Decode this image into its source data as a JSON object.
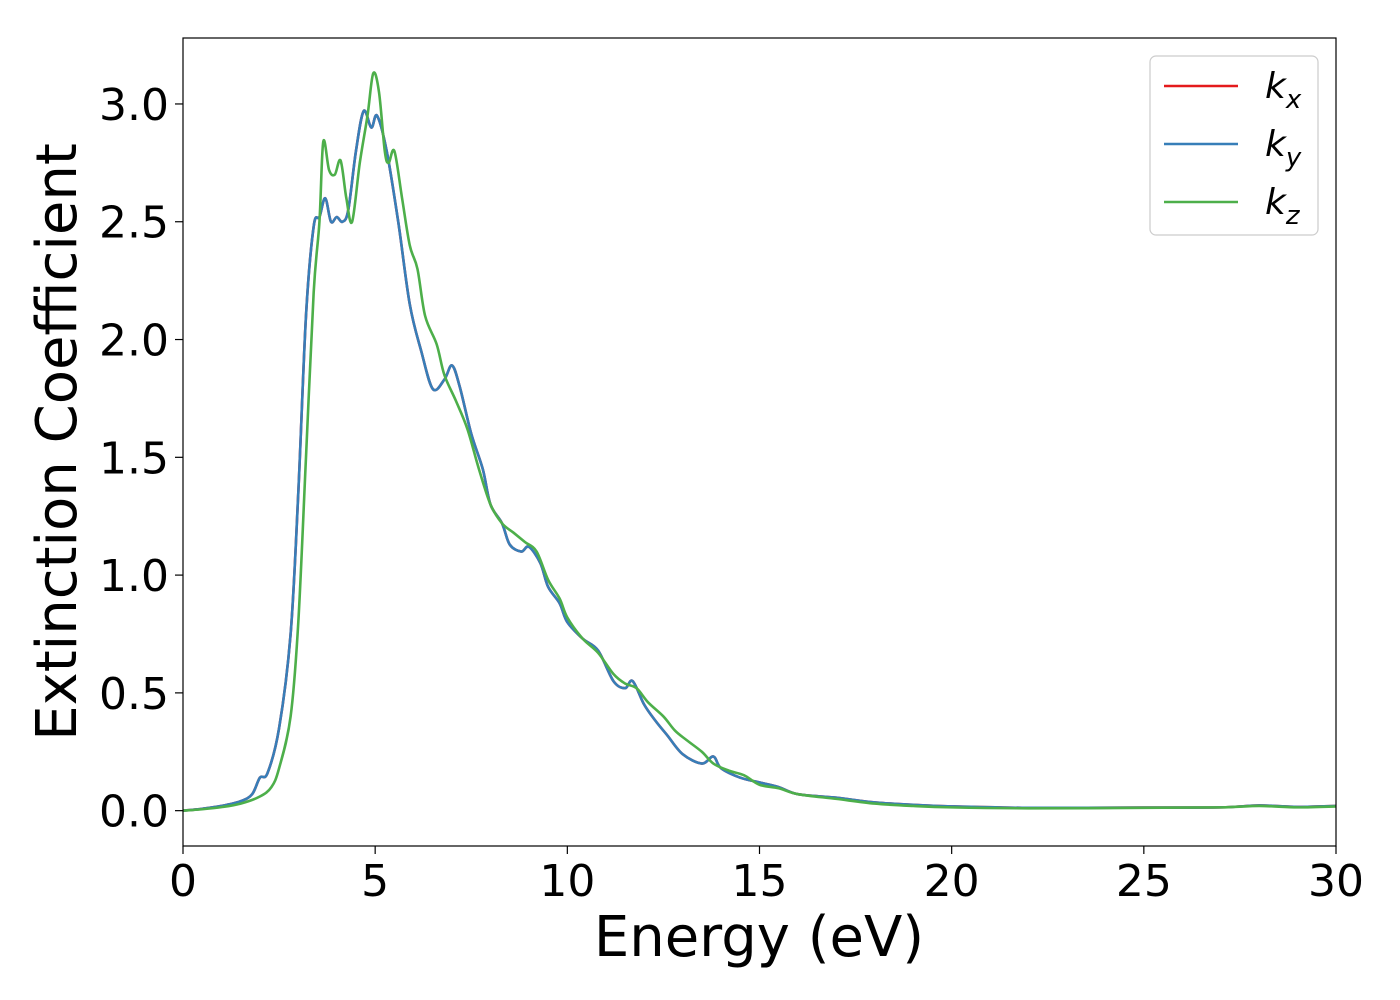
{
  "chart_data": {
    "type": "line",
    "title": "",
    "xlabel": "Energy (eV)",
    "ylabel": "Extinction Coefficient",
    "xlim": [
      0,
      30
    ],
    "ylim": [
      -0.15,
      3.28
    ],
    "xticks": [
      0,
      5,
      10,
      15,
      20,
      25,
      30
    ],
    "xtick_labels": [
      "0",
      "5",
      "10",
      "15",
      "20",
      "25",
      "30"
    ],
    "yticks": [
      0.0,
      0.5,
      1.0,
      1.5,
      2.0,
      2.5,
      3.0
    ],
    "ytick_labels": [
      "0.0",
      "0.5",
      "1.0",
      "1.5",
      "2.0",
      "2.5",
      "3.0"
    ],
    "grid": false,
    "legend_position": "top-right",
    "series": [
      {
        "name": "k",
        "subscript": "x",
        "color": "#e41a1c",
        "points": [
          [
            0,
            0.0
          ],
          [
            0.5,
            0.008
          ],
          [
            1.0,
            0.02
          ],
          [
            1.5,
            0.04
          ],
          [
            1.8,
            0.07
          ],
          [
            2.0,
            0.14
          ],
          [
            2.2,
            0.16
          ],
          [
            2.5,
            0.35
          ],
          [
            2.8,
            0.75
          ],
          [
            3.0,
            1.35
          ],
          [
            3.2,
            2.1
          ],
          [
            3.4,
            2.48
          ],
          [
            3.55,
            2.52
          ],
          [
            3.7,
            2.6
          ],
          [
            3.85,
            2.5
          ],
          [
            4.0,
            2.52
          ],
          [
            4.15,
            2.5
          ],
          [
            4.3,
            2.55
          ],
          [
            4.5,
            2.8
          ],
          [
            4.7,
            2.97
          ],
          [
            4.9,
            2.9
          ],
          [
            5.05,
            2.95
          ],
          [
            5.3,
            2.8
          ],
          [
            5.6,
            2.5
          ],
          [
            5.9,
            2.15
          ],
          [
            6.2,
            1.95
          ],
          [
            6.5,
            1.79
          ],
          [
            6.8,
            1.83
          ],
          [
            7.0,
            1.89
          ],
          [
            7.2,
            1.8
          ],
          [
            7.5,
            1.6
          ],
          [
            7.8,
            1.45
          ],
          [
            8.0,
            1.3
          ],
          [
            8.3,
            1.22
          ],
          [
            8.5,
            1.13
          ],
          [
            8.8,
            1.1
          ],
          [
            9.0,
            1.12
          ],
          [
            9.3,
            1.05
          ],
          [
            9.5,
            0.95
          ],
          [
            9.8,
            0.88
          ],
          [
            10.0,
            0.8
          ],
          [
            10.4,
            0.73
          ],
          [
            10.8,
            0.68
          ],
          [
            11.2,
            0.55
          ],
          [
            11.5,
            0.52
          ],
          [
            11.7,
            0.55
          ],
          [
            12.0,
            0.45
          ],
          [
            12.3,
            0.38
          ],
          [
            12.6,
            0.32
          ],
          [
            13.0,
            0.24
          ],
          [
            13.5,
            0.2
          ],
          [
            13.8,
            0.23
          ],
          [
            14.0,
            0.18
          ],
          [
            14.5,
            0.14
          ],
          [
            15.0,
            0.12
          ],
          [
            15.5,
            0.1
          ],
          [
            16.0,
            0.07
          ],
          [
            17.0,
            0.055
          ],
          [
            18.0,
            0.035
          ],
          [
            19.0,
            0.025
          ],
          [
            20.0,
            0.018
          ],
          [
            22.0,
            0.012
          ],
          [
            25.0,
            0.013
          ],
          [
            27.0,
            0.014
          ],
          [
            28.0,
            0.022
          ],
          [
            29.0,
            0.016
          ],
          [
            30.0,
            0.02
          ]
        ]
      },
      {
        "name": "k",
        "subscript": "y",
        "color": "#377eb8",
        "points": [
          [
            0,
            0.0
          ],
          [
            0.5,
            0.008
          ],
          [
            1.0,
            0.02
          ],
          [
            1.5,
            0.04
          ],
          [
            1.8,
            0.07
          ],
          [
            2.0,
            0.14
          ],
          [
            2.2,
            0.16
          ],
          [
            2.5,
            0.35
          ],
          [
            2.8,
            0.75
          ],
          [
            3.0,
            1.35
          ],
          [
            3.2,
            2.1
          ],
          [
            3.4,
            2.48
          ],
          [
            3.55,
            2.52
          ],
          [
            3.7,
            2.6
          ],
          [
            3.85,
            2.5
          ],
          [
            4.0,
            2.52
          ],
          [
            4.15,
            2.5
          ],
          [
            4.3,
            2.55
          ],
          [
            4.5,
            2.8
          ],
          [
            4.7,
            2.97
          ],
          [
            4.9,
            2.9
          ],
          [
            5.05,
            2.95
          ],
          [
            5.3,
            2.8
          ],
          [
            5.6,
            2.5
          ],
          [
            5.9,
            2.15
          ],
          [
            6.2,
            1.95
          ],
          [
            6.5,
            1.79
          ],
          [
            6.8,
            1.83
          ],
          [
            7.0,
            1.89
          ],
          [
            7.2,
            1.8
          ],
          [
            7.5,
            1.6
          ],
          [
            7.8,
            1.45
          ],
          [
            8.0,
            1.3
          ],
          [
            8.3,
            1.22
          ],
          [
            8.5,
            1.13
          ],
          [
            8.8,
            1.1
          ],
          [
            9.0,
            1.12
          ],
          [
            9.3,
            1.05
          ],
          [
            9.5,
            0.95
          ],
          [
            9.8,
            0.88
          ],
          [
            10.0,
            0.8
          ],
          [
            10.4,
            0.73
          ],
          [
            10.8,
            0.68
          ],
          [
            11.2,
            0.55
          ],
          [
            11.5,
            0.52
          ],
          [
            11.7,
            0.55
          ],
          [
            12.0,
            0.45
          ],
          [
            12.3,
            0.38
          ],
          [
            12.6,
            0.32
          ],
          [
            13.0,
            0.24
          ],
          [
            13.5,
            0.2
          ],
          [
            13.8,
            0.23
          ],
          [
            14.0,
            0.18
          ],
          [
            14.5,
            0.14
          ],
          [
            15.0,
            0.12
          ],
          [
            15.5,
            0.1
          ],
          [
            16.0,
            0.07
          ],
          [
            17.0,
            0.055
          ],
          [
            18.0,
            0.035
          ],
          [
            19.0,
            0.025
          ],
          [
            20.0,
            0.018
          ],
          [
            22.0,
            0.012
          ],
          [
            25.0,
            0.013
          ],
          [
            27.0,
            0.014
          ],
          [
            28.0,
            0.022
          ],
          [
            29.0,
            0.016
          ],
          [
            30.0,
            0.02
          ]
        ]
      },
      {
        "name": "k",
        "subscript": "z",
        "color": "#4daf4a",
        "points": [
          [
            0,
            0.0
          ],
          [
            0.5,
            0.006
          ],
          [
            1.0,
            0.015
          ],
          [
            1.5,
            0.03
          ],
          [
            2.0,
            0.06
          ],
          [
            2.3,
            0.1
          ],
          [
            2.5,
            0.18
          ],
          [
            2.8,
            0.4
          ],
          [
            3.0,
            0.8
          ],
          [
            3.2,
            1.5
          ],
          [
            3.4,
            2.2
          ],
          [
            3.55,
            2.5
          ],
          [
            3.65,
            2.84
          ],
          [
            3.8,
            2.72
          ],
          [
            3.95,
            2.7
          ],
          [
            4.1,
            2.76
          ],
          [
            4.25,
            2.6
          ],
          [
            4.4,
            2.5
          ],
          [
            4.6,
            2.75
          ],
          [
            4.8,
            2.95
          ],
          [
            4.95,
            3.13
          ],
          [
            5.1,
            3.05
          ],
          [
            5.25,
            2.8
          ],
          [
            5.35,
            2.75
          ],
          [
            5.5,
            2.8
          ],
          [
            5.7,
            2.6
          ],
          [
            5.9,
            2.4
          ],
          [
            6.1,
            2.3
          ],
          [
            6.3,
            2.1
          ],
          [
            6.6,
            1.98
          ],
          [
            6.8,
            1.85
          ],
          [
            7.1,
            1.74
          ],
          [
            7.4,
            1.62
          ],
          [
            7.7,
            1.45
          ],
          [
            8.0,
            1.3
          ],
          [
            8.3,
            1.22
          ],
          [
            8.6,
            1.18
          ],
          [
            8.9,
            1.14
          ],
          [
            9.2,
            1.1
          ],
          [
            9.5,
            0.98
          ],
          [
            9.8,
            0.9
          ],
          [
            10.0,
            0.82
          ],
          [
            10.4,
            0.73
          ],
          [
            10.8,
            0.67
          ],
          [
            11.2,
            0.58
          ],
          [
            11.5,
            0.54
          ],
          [
            11.8,
            0.52
          ],
          [
            12.1,
            0.46
          ],
          [
            12.5,
            0.4
          ],
          [
            12.8,
            0.34
          ],
          [
            13.1,
            0.3
          ],
          [
            13.5,
            0.25
          ],
          [
            13.8,
            0.2
          ],
          [
            14.2,
            0.17
          ],
          [
            14.6,
            0.15
          ],
          [
            15.0,
            0.11
          ],
          [
            15.5,
            0.095
          ],
          [
            16.0,
            0.07
          ],
          [
            17.0,
            0.05
          ],
          [
            18.0,
            0.03
          ],
          [
            19.0,
            0.02
          ],
          [
            20.0,
            0.014
          ],
          [
            22.0,
            0.01
          ],
          [
            25.0,
            0.012
          ],
          [
            27.0,
            0.014
          ],
          [
            28.0,
            0.02
          ],
          [
            29.0,
            0.014
          ],
          [
            30.0,
            0.018
          ]
        ]
      }
    ]
  }
}
